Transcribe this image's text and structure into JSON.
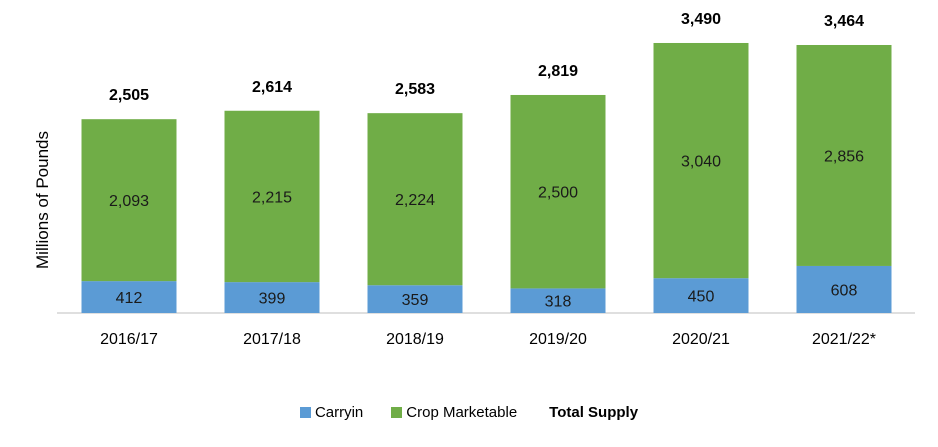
{
  "colors": {
    "carryin": "#5b9bd5",
    "crop": "#70ad47",
    "axis": "#bfbfbf",
    "text": "#000000"
  },
  "legend": {
    "carryin_label": "Carryin",
    "crop_label": "Crop Marketable",
    "total_label": "Total Supply"
  },
  "chart_data": {
    "type": "bar",
    "stacked": true,
    "ylabel": "Millions of Pounds",
    "xlabel": "",
    "title": "",
    "ylim": [
      0,
      3800
    ],
    "grid": false,
    "legend_position": "bottom",
    "categories": [
      "2016/17",
      "2017/18",
      "2018/19",
      "2019/20",
      "2020/21",
      "2021/22*"
    ],
    "series": [
      {
        "name": "Carryin",
        "values": [
          412,
          399,
          359,
          318,
          450,
          608
        ]
      },
      {
        "name": "Crop Marketable",
        "values": [
          2093,
          2215,
          2224,
          2500,
          3040,
          2856
        ]
      }
    ],
    "totals_label": "Total Supply",
    "totals": [
      "2,505",
      "2,614",
      "2,583",
      "2,819",
      "3,490",
      "3,464"
    ],
    "series_labels": [
      [
        "412",
        "399",
        "359",
        "318",
        "450",
        "608"
      ],
      [
        "2,093",
        "2,215",
        "2,224",
        "2,500",
        "3,040",
        "2,856"
      ]
    ]
  }
}
